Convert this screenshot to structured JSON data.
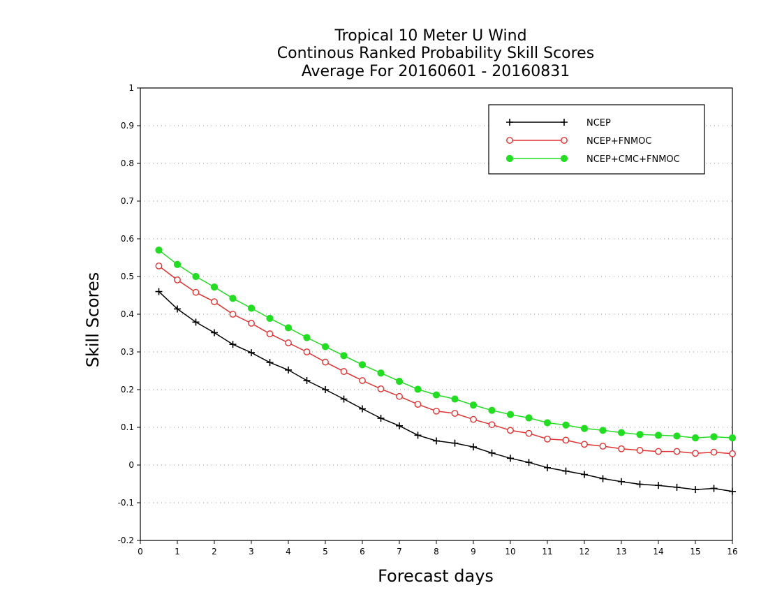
{
  "chart_data": {
    "type": "line",
    "title": [
      "Tropical 10 Meter U Wind",
      "Continous Ranked Probability Skill Scores",
      "Average For 20160601 - 20160831"
    ],
    "xlabel": "Forecast days",
    "ylabel": "Skill Scores",
    "xlim": [
      0,
      16
    ],
    "ylim": [
      -0.2,
      1
    ],
    "xticks": [
      "0",
      "1",
      "2",
      "3",
      "4",
      "5",
      "6",
      "7",
      "8",
      "9",
      "10",
      "11",
      "12",
      "13",
      "14",
      "15",
      "16"
    ],
    "yticks": [
      "-0.2",
      "-0.1",
      "0",
      "0.1",
      "0.2",
      "0.3",
      "0.4",
      "0.5",
      "0.6",
      "0.7",
      "0.8",
      "0.9",
      "1"
    ],
    "grid": "horizontal-dotted",
    "legend_position": "top-right",
    "x": [
      0.5,
      1,
      1.5,
      2,
      2.5,
      3,
      3.5,
      4,
      4.5,
      5,
      5.5,
      6,
      6.5,
      7,
      7.5,
      8,
      8.5,
      9,
      9.5,
      10,
      10.5,
      11,
      11.5,
      12,
      12.5,
      13,
      13.5,
      14,
      14.5,
      15,
      15.5,
      16
    ],
    "series": [
      {
        "name": "NCEP",
        "color": "#000000",
        "marker": "plus",
        "values": [
          0.46,
          0.414,
          0.379,
          0.351,
          0.32,
          0.298,
          0.272,
          0.252,
          0.224,
          0.2,
          0.175,
          0.149,
          0.124,
          0.104,
          0.079,
          0.064,
          0.058,
          0.048,
          0.032,
          0.018,
          0.007,
          -0.007,
          -0.016,
          -0.025,
          -0.036,
          -0.044,
          -0.051,
          -0.054,
          -0.059,
          -0.065,
          -0.062,
          -0.07
        ]
      },
      {
        "name": "NCEP+FNMOC",
        "color": "#e03030",
        "marker": "open-circle",
        "values": [
          0.528,
          0.491,
          0.458,
          0.433,
          0.4,
          0.376,
          0.348,
          0.324,
          0.3,
          0.273,
          0.248,
          0.224,
          0.202,
          0.182,
          0.161,
          0.143,
          0.137,
          0.121,
          0.107,
          0.092,
          0.084,
          0.069,
          0.066,
          0.055,
          0.05,
          0.043,
          0.039,
          0.036,
          0.036,
          0.031,
          0.034,
          0.03
        ]
      },
      {
        "name": "NCEP+CMC+FNMOC",
        "color": "#22dd22",
        "marker": "filled-circle",
        "values": [
          0.57,
          0.532,
          0.5,
          0.472,
          0.442,
          0.416,
          0.389,
          0.364,
          0.338,
          0.314,
          0.29,
          0.266,
          0.244,
          0.222,
          0.201,
          0.186,
          0.175,
          0.159,
          0.145,
          0.134,
          0.125,
          0.112,
          0.106,
          0.097,
          0.092,
          0.086,
          0.081,
          0.079,
          0.077,
          0.072,
          0.075,
          0.072
        ]
      }
    ]
  }
}
